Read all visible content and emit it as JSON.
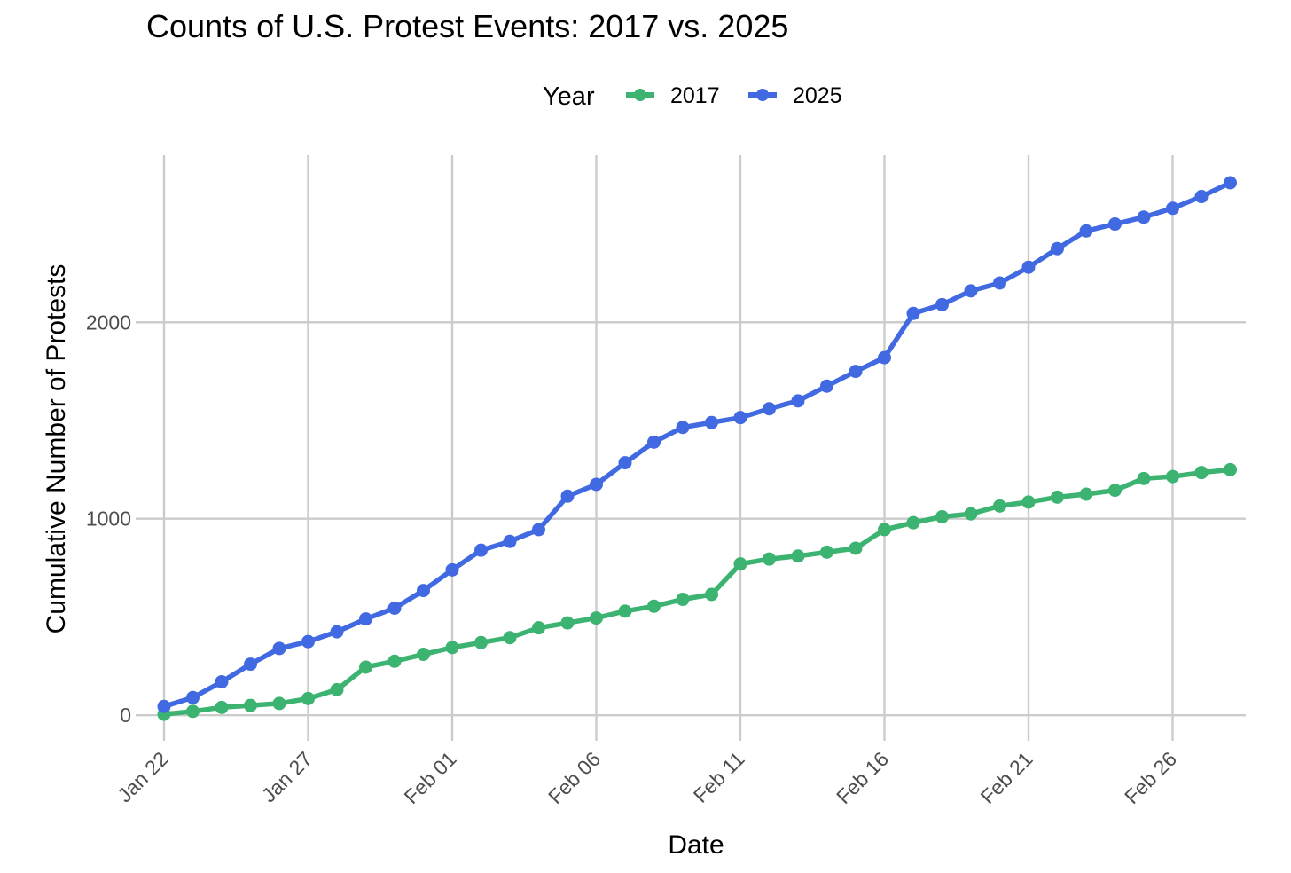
{
  "chart_data": {
    "type": "line",
    "title": "Counts of U.S. Protest Events: 2017 vs. 2025",
    "xlabel": "Date",
    "ylabel": "Cumulative Number of Protests",
    "x_ticks": [
      "Jan 22",
      "Jan 27",
      "Feb 01",
      "Feb 06",
      "Feb 11",
      "Feb 16",
      "Feb 21",
      "Feb 26"
    ],
    "y_ticks": [
      0,
      1000,
      2000
    ],
    "ylim": [
      -130,
      2850
    ],
    "xlim": [
      "Jan 22",
      "Feb 28"
    ],
    "grid": true,
    "legend": {
      "title": "Year",
      "placement": "top"
    },
    "x": [
      "Jan 22",
      "Jan 23",
      "Jan 24",
      "Jan 25",
      "Jan 26",
      "Jan 27",
      "Jan 28",
      "Jan 29",
      "Jan 30",
      "Jan 31",
      "Feb 01",
      "Feb 02",
      "Feb 03",
      "Feb 04",
      "Feb 05",
      "Feb 06",
      "Feb 07",
      "Feb 08",
      "Feb 09",
      "Feb 10",
      "Feb 11",
      "Feb 12",
      "Feb 13",
      "Feb 14",
      "Feb 15",
      "Feb 16",
      "Feb 17",
      "Feb 18",
      "Feb 19",
      "Feb 20",
      "Feb 21",
      "Feb 22",
      "Feb 23",
      "Feb 24",
      "Feb 25",
      "Feb 26",
      "Feb 27",
      "Feb 28"
    ],
    "series": [
      {
        "name": "2017",
        "color": "#3cb371",
        "values": [
          5,
          20,
          40,
          50,
          60,
          85,
          130,
          245,
          275,
          310,
          345,
          370,
          395,
          445,
          470,
          495,
          530,
          555,
          590,
          615,
          770,
          795,
          810,
          830,
          850,
          945,
          980,
          1010,
          1025,
          1065,
          1085,
          1110,
          1125,
          1145,
          1205,
          1215,
          1235,
          1250
        ]
      },
      {
        "name": "2025",
        "color": "#4169e1",
        "values": [
          45,
          90,
          170,
          260,
          340,
          375,
          425,
          490,
          545,
          635,
          740,
          840,
          885,
          945,
          1115,
          1175,
          1285,
          1390,
          1465,
          1490,
          1515,
          1560,
          1600,
          1675,
          1750,
          1820,
          2045,
          2090,
          2160,
          2200,
          2280,
          2375,
          2465,
          2500,
          2535,
          2580,
          2640,
          2710
        ]
      }
    ]
  }
}
